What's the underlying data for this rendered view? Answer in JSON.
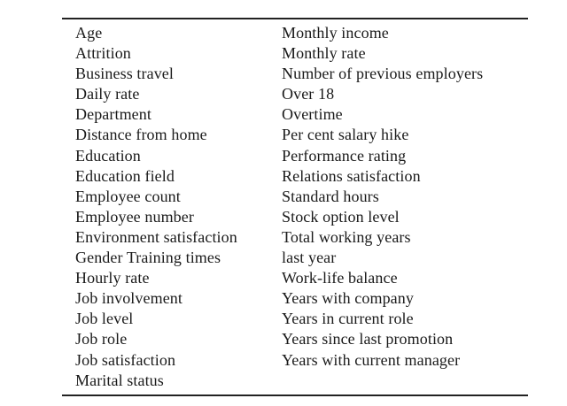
{
  "table": {
    "left_column": [
      "Age",
      "Attrition",
      "Business travel",
      "Daily rate",
      "Department",
      "Distance from home",
      "Education",
      "Education field",
      "Employee count",
      "Employee number",
      "Environment satisfaction",
      "Gender Training times",
      "Hourly rate",
      "Job involvement",
      "Job level",
      "Job role",
      "Job satisfaction",
      "Marital status"
    ],
    "right_column": [
      "Monthly income",
      "Monthly rate",
      "Number of previous employers",
      "Over 18",
      "Overtime",
      "Per cent salary hike",
      "Performance rating",
      "Relations satisfaction",
      "Standard hours",
      "Stock option level",
      "Total working years",
      "last year",
      "Work-life balance",
      "Years with company",
      "Years in current role",
      "Years since last promotion",
      "Years with current manager"
    ]
  }
}
